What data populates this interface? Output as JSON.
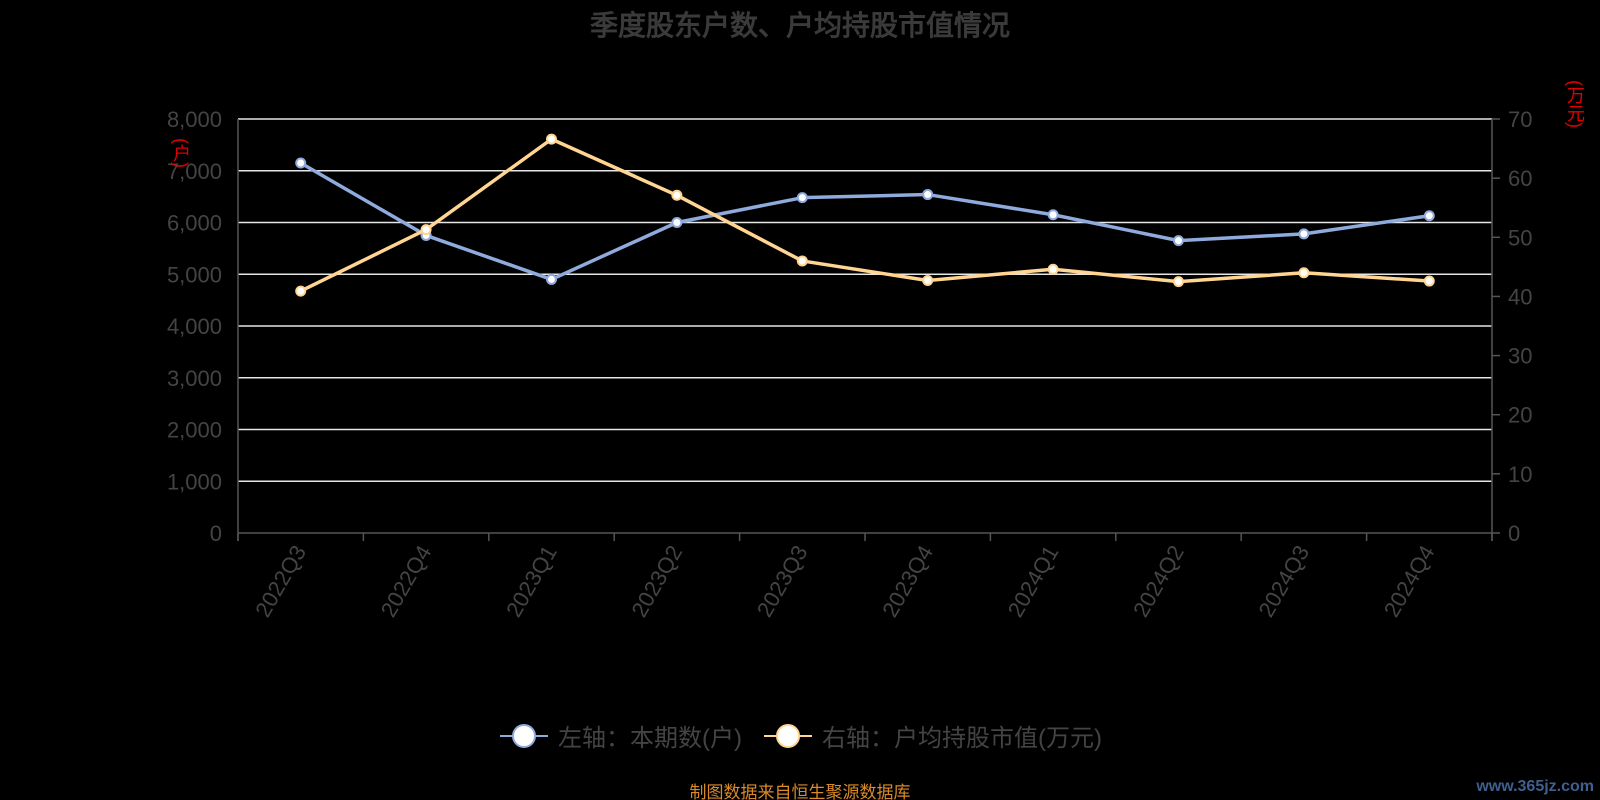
{
  "chart_data": {
    "type": "line",
    "title": "季度股东户数、户均持股市值情况",
    "categories": [
      "2022Q3",
      "2022Q4",
      "2023Q1",
      "2023Q2",
      "2023Q3",
      "2023Q4",
      "2024Q1",
      "2024Q2",
      "2024Q3",
      "2024Q4"
    ],
    "left_axis": {
      "unit": "(户)",
      "ylim": [
        0,
        8000
      ],
      "ticks": [
        "0",
        "1,000",
        "2,000",
        "3,000",
        "4,000",
        "5,000",
        "6,000",
        "7,000",
        "8,000"
      ]
    },
    "right_axis": {
      "unit": "(万元)",
      "ylim": [
        0,
        70
      ],
      "ticks": [
        "0",
        "10",
        "20",
        "30",
        "40",
        "50",
        "60",
        "70"
      ]
    },
    "series": [
      {
        "name": "左轴：本期数(户)",
        "axis": "left",
        "color": "#8faadc",
        "values": [
          7150,
          5750,
          4900,
          6000,
          6480,
          6540,
          6150,
          5650,
          5780,
          6130
        ]
      },
      {
        "name": "右轴：户均持股市值(万元)",
        "axis": "right",
        "color": "#ffd591",
        "values": [
          40.9,
          51.3,
          66.6,
          57.1,
          46.0,
          42.7,
          44.6,
          42.5,
          44.0,
          42.6
        ]
      }
    ],
    "grid": true,
    "legend": "bottom-center"
  },
  "footer": "制图数据来自恒生聚源数据库",
  "watermark": "www.365jz.com"
}
